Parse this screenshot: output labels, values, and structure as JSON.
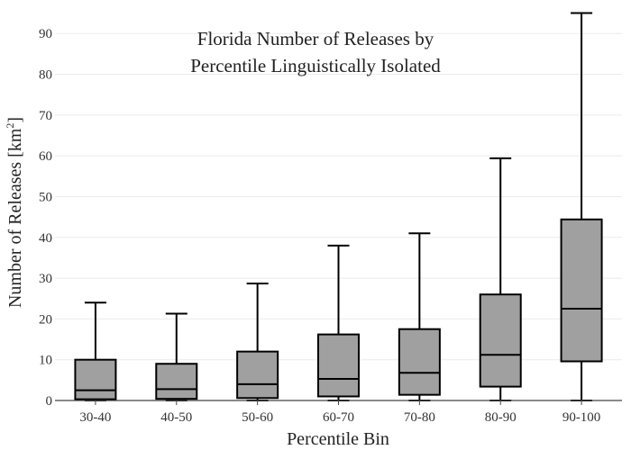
{
  "chart_data": {
    "type": "box",
    "title_lines": [
      "Florida Number of Releases by",
      "Percentile Linguistically Isolated"
    ],
    "xlabel": "Percentile Bin",
    "ylabel_main": "Number of Releases  [km",
    "ylabel_sup": "2",
    "ylabel_tail": "]",
    "ylim": [
      0,
      96
    ],
    "yticks": [
      0,
      10,
      20,
      30,
      40,
      50,
      60,
      70,
      80,
      90
    ],
    "grid": true,
    "box_color": "#a0a0a0",
    "categories": [
      "30-40",
      "40-50",
      "50-60",
      "60-70",
      "70-80",
      "80-90",
      "90-100"
    ],
    "boxes": [
      {
        "min": 0,
        "q1": 0.3,
        "median": 2.5,
        "q3": 10,
        "max": 24
      },
      {
        "min": 0,
        "q1": 0.4,
        "median": 2.8,
        "q3": 9,
        "max": 21.3
      },
      {
        "min": 0,
        "q1": 0.6,
        "median": 4,
        "q3": 12,
        "max": 28.7
      },
      {
        "min": 0,
        "q1": 1,
        "median": 5.3,
        "q3": 16.2,
        "max": 38
      },
      {
        "min": 0,
        "q1": 1.4,
        "median": 6.8,
        "q3": 17.5,
        "max": 41
      },
      {
        "min": 0,
        "q1": 3.4,
        "median": 11.2,
        "q3": 26,
        "max": 59.4
      },
      {
        "min": 0,
        "q1": 9.6,
        "median": 22.5,
        "q3": 44.4,
        "max": 95
      }
    ]
  }
}
